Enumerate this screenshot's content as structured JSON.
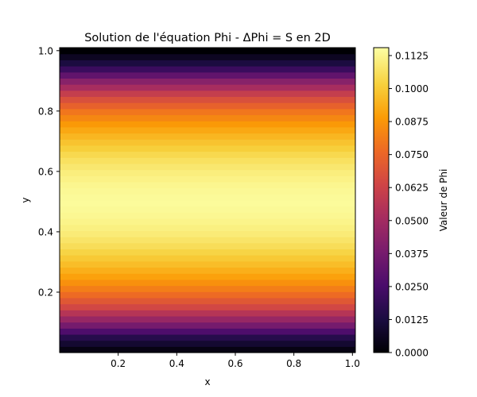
{
  "chart_data": {
    "type": "heatmap",
    "title": "Solution de l'équation Phi - ΔPhi = S en 2D",
    "xlabel": "x",
    "ylabel": "y",
    "colorbar_label": "Valeur de Phi",
    "colormap": "inferno",
    "xlim": [
      0.0,
      1.01
    ],
    "ylim": [
      0.0,
      1.01
    ],
    "vmin": 0.0,
    "vmax": 0.1155,
    "x_ticks": [
      0.2,
      0.4,
      0.6,
      0.8,
      1.0
    ],
    "x_tick_labels": [
      "0.2",
      "0.4",
      "0.6",
      "0.8",
      "1.0"
    ],
    "y_ticks": [
      0.2,
      0.4,
      0.6,
      0.8,
      1.0
    ],
    "y_tick_labels": [
      "0.2",
      "0.4",
      "0.6",
      "0.8",
      "1.0"
    ],
    "colorbar_ticks": [
      0.0,
      0.0125,
      0.025,
      0.0375,
      0.05,
      0.0625,
      0.075,
      0.0875,
      0.1,
      0.1125
    ],
    "colorbar_tick_labels": [
      "0.0000",
      "0.0125",
      "0.0250",
      "0.0375",
      "0.0500",
      "0.0625",
      "0.0750",
      "0.0875",
      "0.1000",
      "0.1125"
    ],
    "field": {
      "description": "Phi is constant along x and varies along y, peaking near y = 0.5",
      "y": [
        0.0,
        0.05,
        0.1,
        0.15,
        0.2,
        0.25,
        0.3,
        0.35,
        0.4,
        0.45,
        0.5,
        0.55,
        0.6,
        0.65,
        0.7,
        0.75,
        0.8,
        0.85,
        0.9,
        0.95,
        1.0
      ],
      "phi": [
        0.0,
        0.0155,
        0.042,
        0.064,
        0.079,
        0.09,
        0.098,
        0.105,
        0.11,
        0.113,
        0.1145,
        0.113,
        0.11,
        0.105,
        0.098,
        0.09,
        0.079,
        0.064,
        0.042,
        0.0155,
        0.0
      ]
    }
  }
}
